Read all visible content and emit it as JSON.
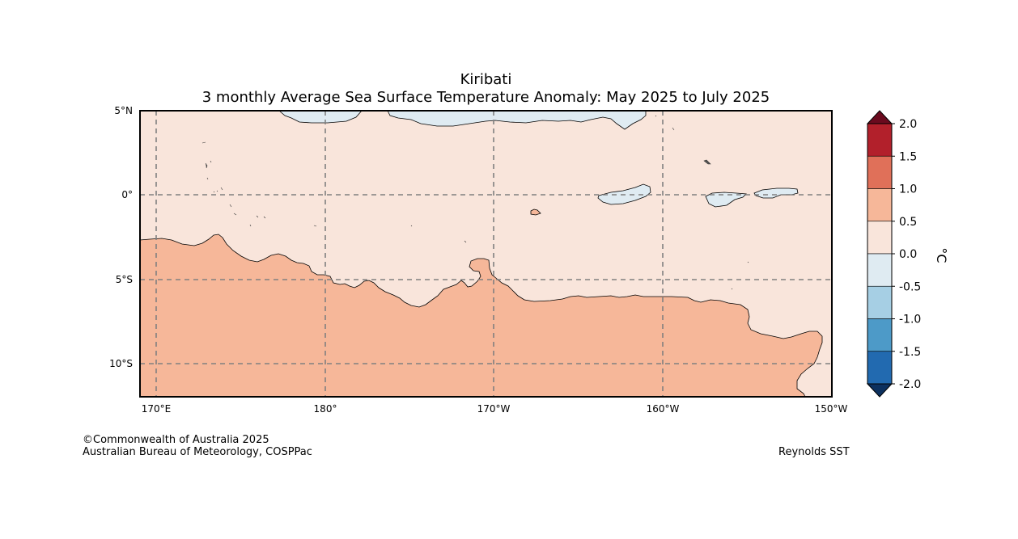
{
  "title": {
    "line1": "Kiribati",
    "line2": "3 monthly Average Sea Surface Temperature Anomaly: May 2025 to July 2025"
  },
  "map": {
    "lat_labels": [
      "5°N",
      "0°",
      "5°S",
      "10°S"
    ],
    "lon_labels": [
      "170°E",
      "180°",
      "170°W",
      "160°W",
      "150°W"
    ]
  },
  "colorbar": {
    "unit": "°C",
    "ticks": [
      "2.0",
      "1.5",
      "1.0",
      "0.5",
      "0.0",
      "-0.5",
      "-1.0",
      "-1.5",
      "-2.0"
    ],
    "colors": [
      "#b2202b",
      "#e07059",
      "#f6b799",
      "#f9e5db",
      "#dfebf2",
      "#a6cfe4",
      "#4d9ac8",
      "#226ab0"
    ],
    "extend_high_color": "#6a0a1e",
    "extend_low_color": "#0c305e"
  },
  "colors": {
    "band_0_to_0_5": "#f9e5db",
    "band_0_5_to_1_0": "#f6b799",
    "band_neg0_5_to_0": "#dfebf2",
    "grid": "#808080"
  },
  "credits": {
    "copyright": "©Commonwealth of Australia 2025",
    "agency": "Australian Bureau of Meteorology, COSPPac",
    "source": "Reynolds SST"
  }
}
